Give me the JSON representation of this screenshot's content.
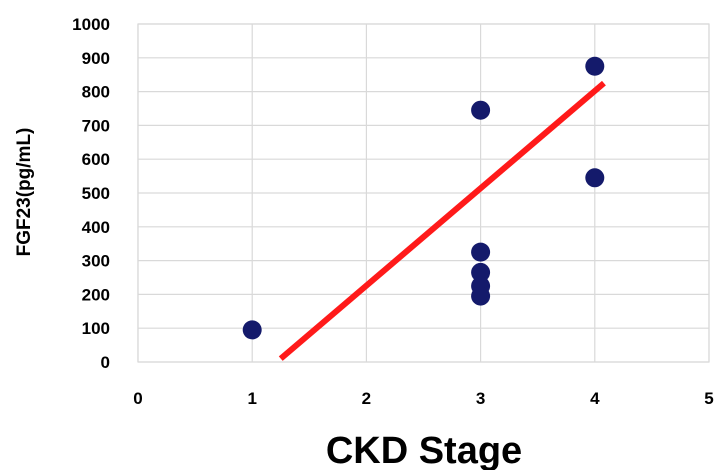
{
  "chart_data": {
    "type": "scatter",
    "title": "",
    "xlabel": "CKD Stage",
    "ylabel": "FGF23(pg/mL)",
    "xlim": [
      0,
      5
    ],
    "ylim": [
      0,
      1000
    ],
    "x_ticks": [
      "0",
      "1",
      "2",
      "3",
      "4",
      "5"
    ],
    "y_ticks": [
      "0",
      "100",
      "200",
      "300",
      "400",
      "500",
      "600",
      "700",
      "800",
      "900",
      "1000"
    ],
    "grid": true,
    "legend": "none",
    "series": [
      {
        "points": [
          {
            "x": 1,
            "y": 95
          },
          {
            "x": 3,
            "y": 745
          },
          {
            "x": 3,
            "y": 325
          },
          {
            "x": 3,
            "y": 265
          },
          {
            "x": 3,
            "y": 225
          },
          {
            "x": 3,
            "y": 195
          },
          {
            "x": 4,
            "y": 875
          },
          {
            "x": 4,
            "y": 545
          }
        ],
        "color": "#141a6b"
      }
    ],
    "trendline": {
      "type": "linear",
      "start": {
        "x": 1.25,
        "y": 10
      },
      "end": {
        "x": 4.08,
        "y": 825
      },
      "color": "#ff1a1a"
    }
  }
}
